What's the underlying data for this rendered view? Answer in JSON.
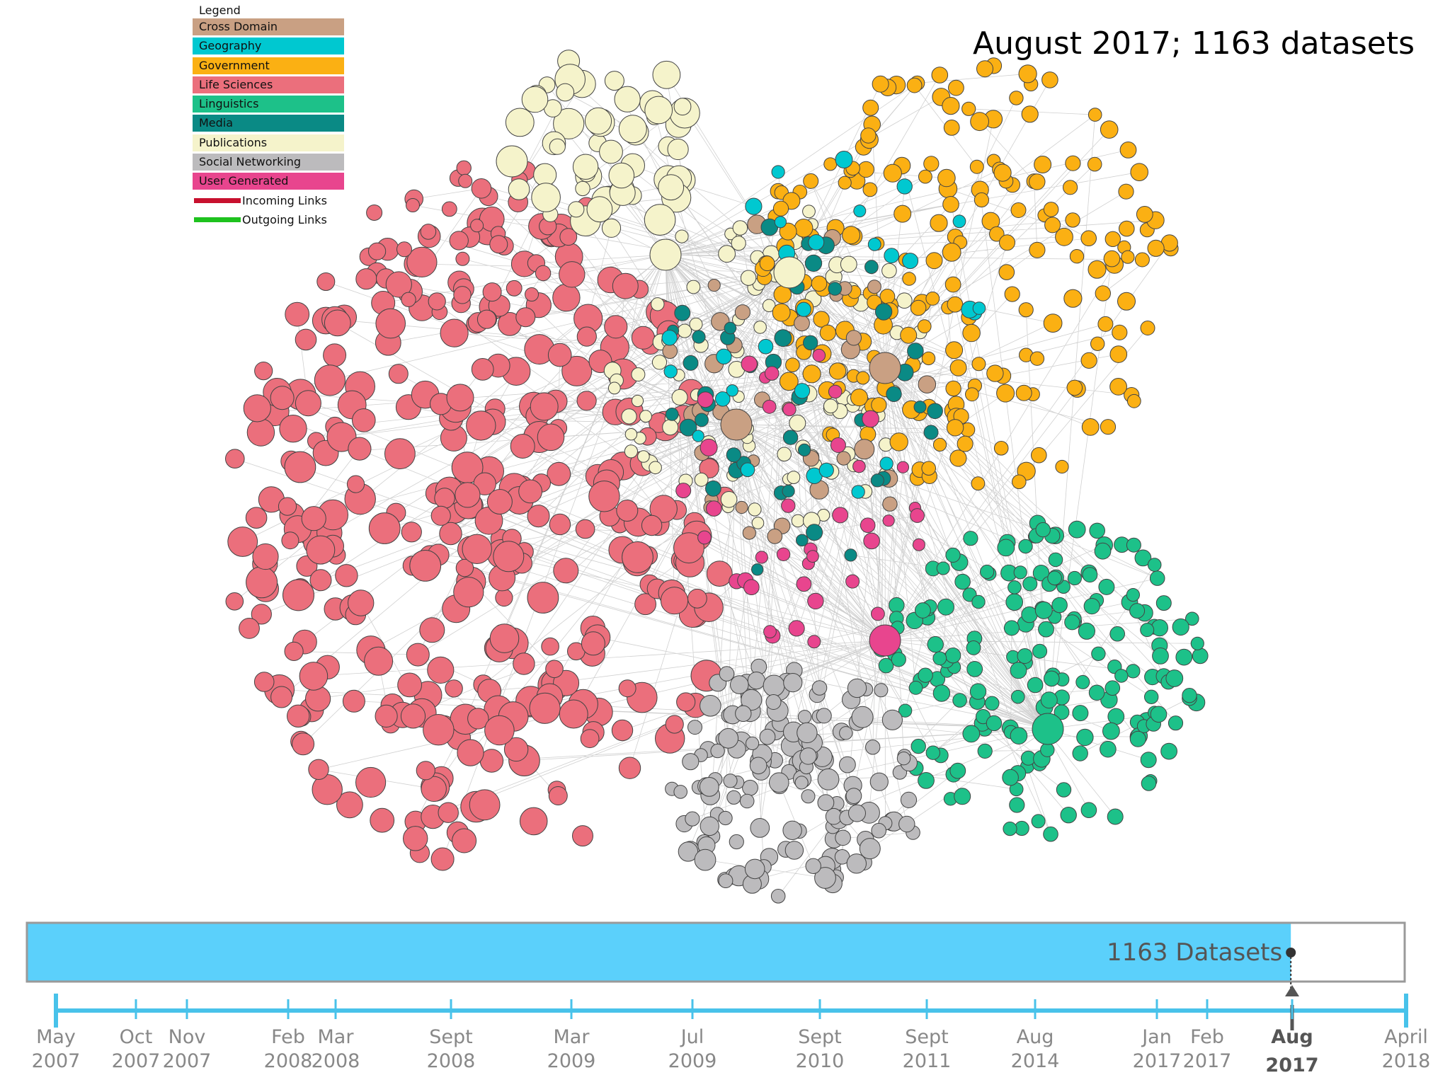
{
  "headline": "August 2017; 1163 datasets",
  "legend": {
    "title": "Legend",
    "categories": [
      {
        "label": "Cross Domain",
        "color": "#c9a083"
      },
      {
        "label": "Geography",
        "color": "#00c8d0"
      },
      {
        "label": "Government",
        "color": "#fbb013"
      },
      {
        "label": "Life Sciences",
        "color": "#eb6f7c"
      },
      {
        "label": "Linguistics",
        "color": "#1dc189"
      },
      {
        "label": "Media",
        "color": "#0a8a85"
      },
      {
        "label": "Publications",
        "color": "#f5f3cb"
      },
      {
        "label": "Social Networking",
        "color": "#bcbbbd"
      },
      {
        "label": "User Generated",
        "color": "#e8458e"
      }
    ],
    "links": [
      {
        "label": "Incoming Links",
        "color": "#c8102e"
      },
      {
        "label": "Outgoing Links",
        "color": "#1ec21e"
      }
    ]
  },
  "progress": {
    "label": "1163 Datasets",
    "fraction": 0.918,
    "fill_color": "#5bd0fb"
  },
  "timeline": {
    "color": "#48c2ea",
    "ticks": [
      {
        "month": "May",
        "year": "2007"
      },
      {
        "month": "Oct",
        "year": "2007"
      },
      {
        "month": "Nov",
        "year": "2007"
      },
      {
        "month": "Feb",
        "year": "2008"
      },
      {
        "month": "Mar",
        "year": "2008"
      },
      {
        "month": "Sept",
        "year": "2008"
      },
      {
        "month": "Mar",
        "year": "2009"
      },
      {
        "month": "Jul",
        "year": "2009"
      },
      {
        "month": "Sept",
        "year": "2010"
      },
      {
        "month": "Sept",
        "year": "2011"
      },
      {
        "month": "Aug",
        "year": "2014"
      },
      {
        "month": "Jan",
        "year": "2017"
      },
      {
        "month": "Feb",
        "year": "2017"
      },
      {
        "month": "Aug",
        "year": "2017",
        "current": true
      },
      {
        "month": "April",
        "year": "2018"
      }
    ]
  }
}
